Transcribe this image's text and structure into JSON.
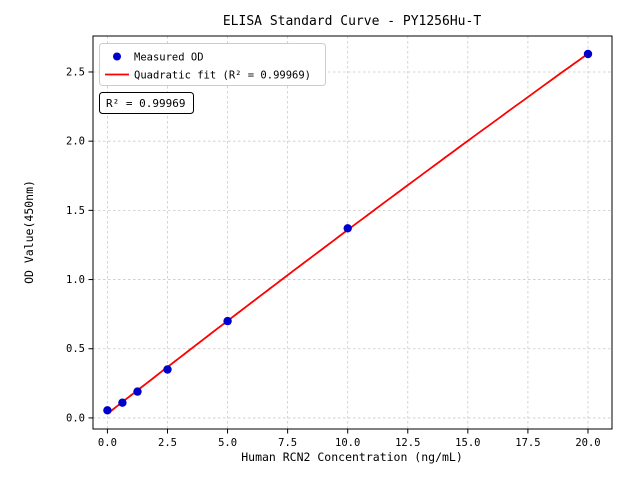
{
  "chart_data": {
    "type": "scatter",
    "title": "ELISA Standard Curve - PY1256Hu-T",
    "xlabel": "Human RCN2 Concentration (ng/mL)",
    "ylabel": "OD Value(450nm)",
    "xlim": [
      -0.6,
      21.0
    ],
    "ylim": [
      -0.08,
      2.76
    ],
    "grid": true,
    "legend_position": "upper-left",
    "xticks": [
      {
        "value": 0.0,
        "label": "0.0"
      },
      {
        "value": 2.5,
        "label": "2.5"
      },
      {
        "value": 5.0,
        "label": "5.0"
      },
      {
        "value": 7.5,
        "label": "7.5"
      },
      {
        "value": 10.0,
        "label": "10.0"
      },
      {
        "value": 12.5,
        "label": "12.5"
      },
      {
        "value": 15.0,
        "label": "15.0"
      },
      {
        "value": 17.5,
        "label": "17.5"
      },
      {
        "value": 20.0,
        "label": "20.0"
      }
    ],
    "yticks": [
      {
        "value": 0.0,
        "label": "0.0"
      },
      {
        "value": 0.5,
        "label": "0.5"
      },
      {
        "value": 1.0,
        "label": "1.0"
      },
      {
        "value": 1.5,
        "label": "1.5"
      },
      {
        "value": 2.0,
        "label": "2.0"
      },
      {
        "value": 2.5,
        "label": "2.5"
      }
    ],
    "series": [
      {
        "name": "Measured OD",
        "type": "scatter",
        "color": "#0000cd",
        "points": [
          [
            0.0,
            0.055
          ],
          [
            0.625,
            0.11
          ],
          [
            1.25,
            0.19
          ],
          [
            2.5,
            0.35
          ],
          [
            5.0,
            0.7
          ],
          [
            10.0,
            1.37
          ],
          [
            20.0,
            2.63
          ]
        ]
      },
      {
        "name": "Quadratic fit",
        "type": "quadratic-fit-line",
        "color": "#ff0000",
        "r_squared": 0.99969
      }
    ],
    "legend": [
      {
        "label": "Measured OD",
        "marker": "dot",
        "color": "#0000cd"
      },
      {
        "label": "Quadratic fit (R² = 0.99969)",
        "marker": "line",
        "color": "#ff0000"
      }
    ],
    "annotation": "R² = 0.99969"
  }
}
